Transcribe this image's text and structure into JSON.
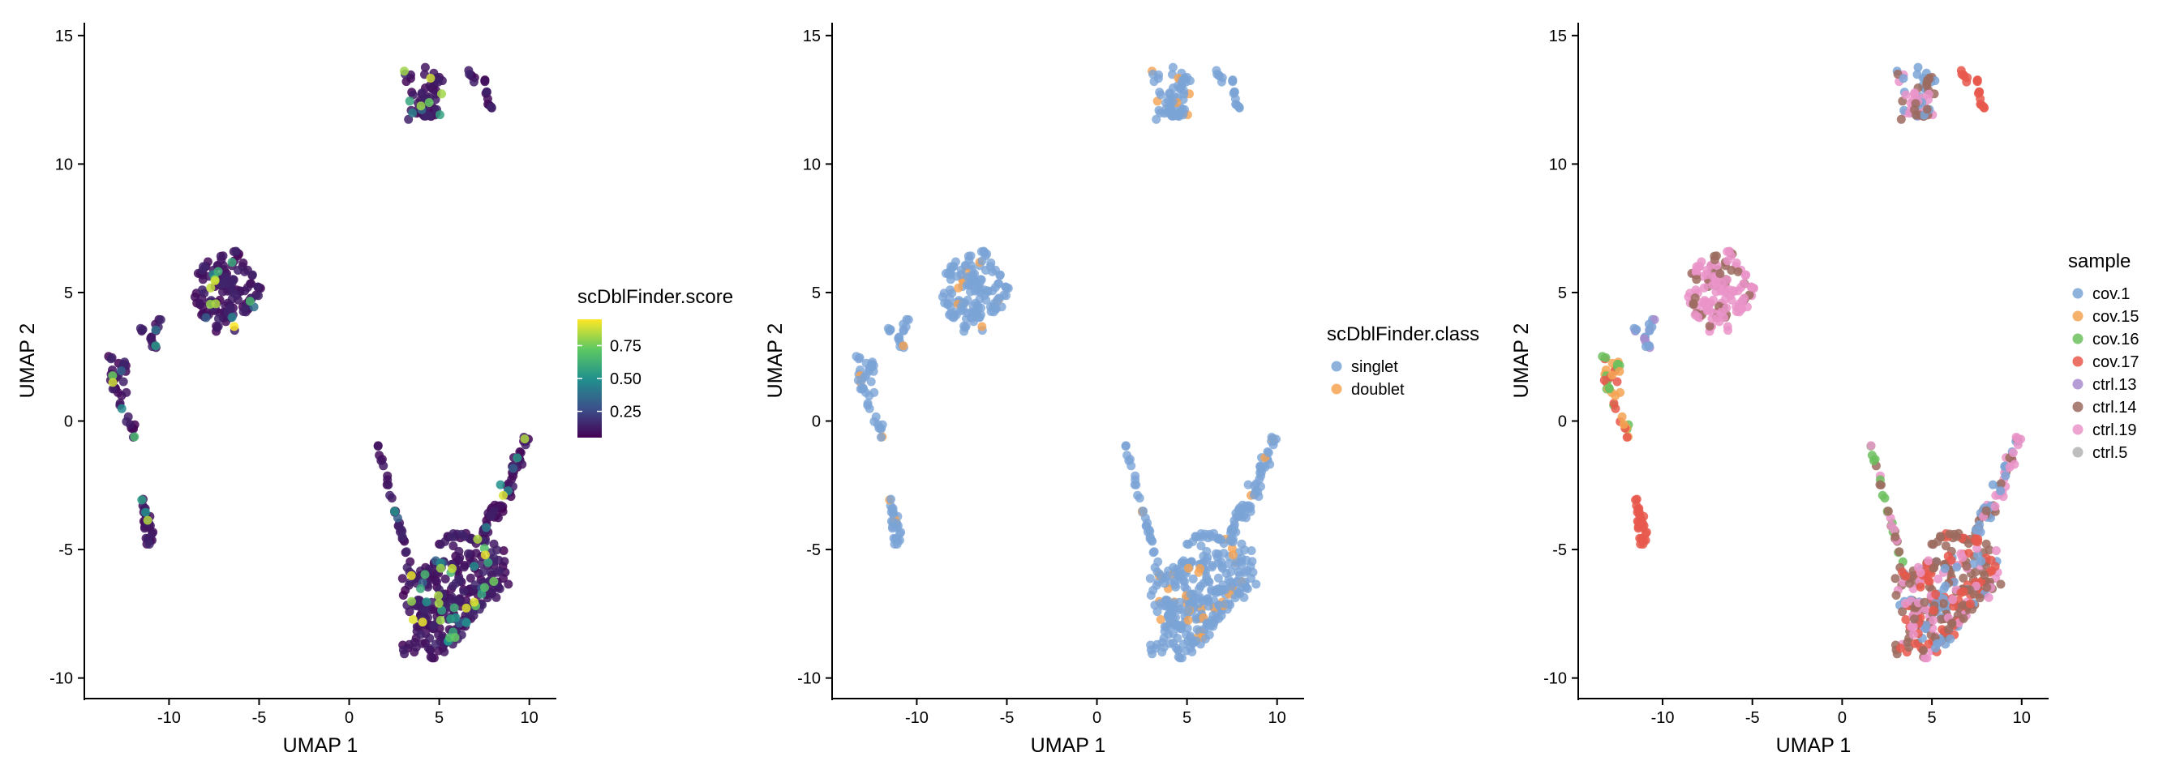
{
  "chart_data": [
    {
      "type": "scatter",
      "xlabel": "UMAP 1",
      "ylabel": "UMAP 2",
      "xlim": [
        -14.7,
        11.5
      ],
      "ylim": [
        -10.8,
        15.5
      ],
      "xticks": [
        -10,
        -5,
        0,
        5,
        10
      ],
      "yticks": [
        -10,
        -5,
        0,
        5,
        10,
        15
      ],
      "xtick_labels": [
        "-10",
        "-5",
        "0",
        "5",
        "10"
      ],
      "ytick_labels": [
        "-10",
        "-5",
        "0",
        "5",
        "10",
        "15"
      ],
      "grid": false,
      "color_by": "continuous",
      "legend": {
        "title": "scDblFinder.score",
        "placement": "right",
        "type": "colorbar",
        "colormap": [
          "#440154",
          "#3b528b",
          "#21918c",
          "#5ec962",
          "#fde725"
        ],
        "range": [
          0.05,
          0.95
        ],
        "ticks": [
          0.25,
          0.5,
          0.75
        ],
        "tick_labels": [
          "0.25",
          "0.50",
          "0.75"
        ]
      }
    },
    {
      "type": "scatter",
      "xlabel": "UMAP 1",
      "ylabel": "UMAP 2",
      "xlim": [
        -14.7,
        11.5
      ],
      "ylim": [
        -10.8,
        15.5
      ],
      "xticks": [
        -10,
        -5,
        0,
        5,
        10
      ],
      "yticks": [
        -10,
        -5,
        0,
        5,
        10,
        15
      ],
      "xtick_labels": [
        "-10",
        "-5",
        "0",
        "5",
        "10"
      ],
      "ytick_labels": [
        "-10",
        "-5",
        "0",
        "5",
        "10",
        "15"
      ],
      "grid": false,
      "color_by": "class",
      "legend": {
        "title": "scDblFinder.class",
        "placement": "right",
        "type": "categorical",
        "entries": [
          {
            "label": "singlet",
            "color": "#7ba4d6"
          },
          {
            "label": "doublet",
            "color": "#f5a352"
          }
        ]
      }
    },
    {
      "type": "scatter",
      "xlabel": "UMAP 1",
      "ylabel": "UMAP 2",
      "xlim": [
        -14.7,
        11.5
      ],
      "ylim": [
        -10.8,
        15.5
      ],
      "xticks": [
        -10,
        -5,
        0,
        5,
        10
      ],
      "yticks": [
        -10,
        -5,
        0,
        5,
        10,
        15
      ],
      "xtick_labels": [
        "-10",
        "-5",
        "0",
        "5",
        "10"
      ],
      "ytick_labels": [
        "-10",
        "-5",
        "0",
        "5",
        "10",
        "15"
      ],
      "grid": false,
      "color_by": "sample",
      "legend": {
        "title": "sample",
        "placement": "right",
        "type": "categorical",
        "entries": [
          {
            "label": "cov.1",
            "color": "#7ba4d6"
          },
          {
            "label": "cov.15",
            "color": "#f5a352"
          },
          {
            "label": "cov.16",
            "color": "#6cbf5e"
          },
          {
            "label": "cov.17",
            "color": "#e8584c"
          },
          {
            "label": "ctrl.13",
            "color": "#a98ccf"
          },
          {
            "label": "ctrl.14",
            "color": "#9c6b5f"
          },
          {
            "label": "ctrl.19",
            "color": "#ea94c9"
          },
          {
            "label": "ctrl.5",
            "color": "#b3b3b3"
          }
        ]
      }
    }
  ]
}
